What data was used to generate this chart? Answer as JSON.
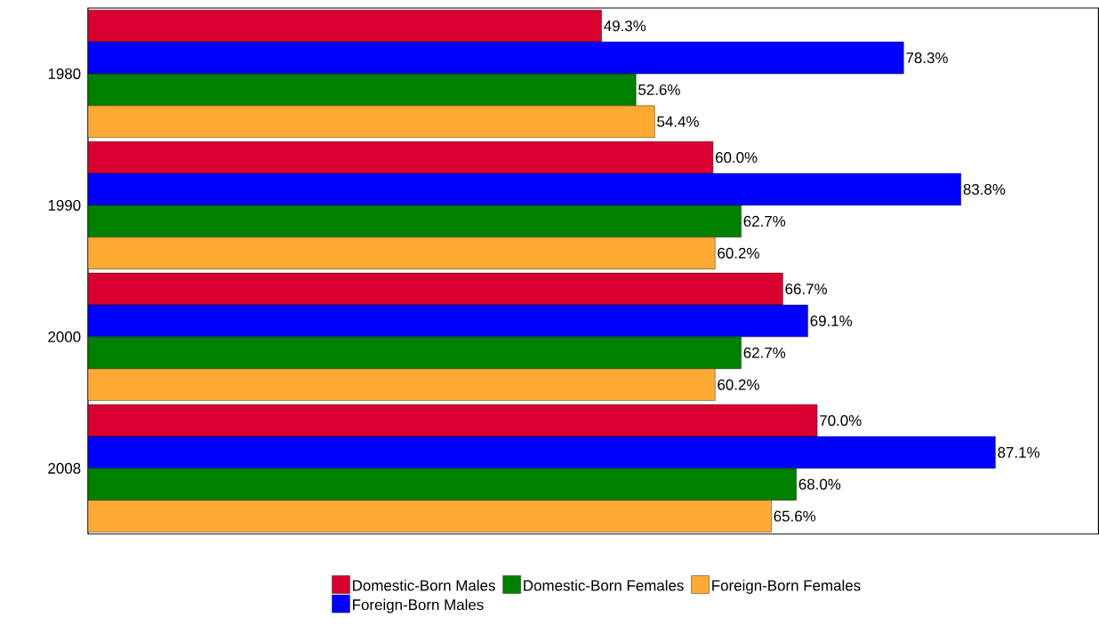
{
  "chart_data": {
    "type": "bar",
    "orientation": "horizontal",
    "categories": [
      "1980",
      "1990",
      "2000",
      "2008"
    ],
    "series": [
      {
        "name": "Domestic-Born Males",
        "color": "#d9002f",
        "values": [
          49.3,
          60.0,
          66.7,
          70.0
        ],
        "value_labels": [
          "49.3%",
          "60.0%",
          "66.7%",
          "70.0%"
        ]
      },
      {
        "name": "Foreign-Born Males",
        "color": "#0000ff",
        "values": [
          78.3,
          83.8,
          69.1,
          87.1
        ],
        "value_labels": [
          "78.3%",
          "83.8%",
          "69.1%",
          "87.1%"
        ]
      },
      {
        "name": "Domestic-Born Females",
        "color": "#008000",
        "values": [
          52.6,
          62.7,
          62.7,
          68.0
        ],
        "value_labels": [
          "52.6%",
          "62.7%",
          "62.7%",
          "68.0%"
        ]
      },
      {
        "name": "Foreign-Born Females",
        "color": "#ffaa33",
        "values": [
          54.4,
          60.2,
          60.2,
          65.6
        ],
        "value_labels": [
          "54.4%",
          "60.2%",
          "60.2%",
          "65.6%"
        ]
      }
    ],
    "xlim": [
      0,
      97
    ],
    "legend": "bottom",
    "tick_labels": "y"
  }
}
